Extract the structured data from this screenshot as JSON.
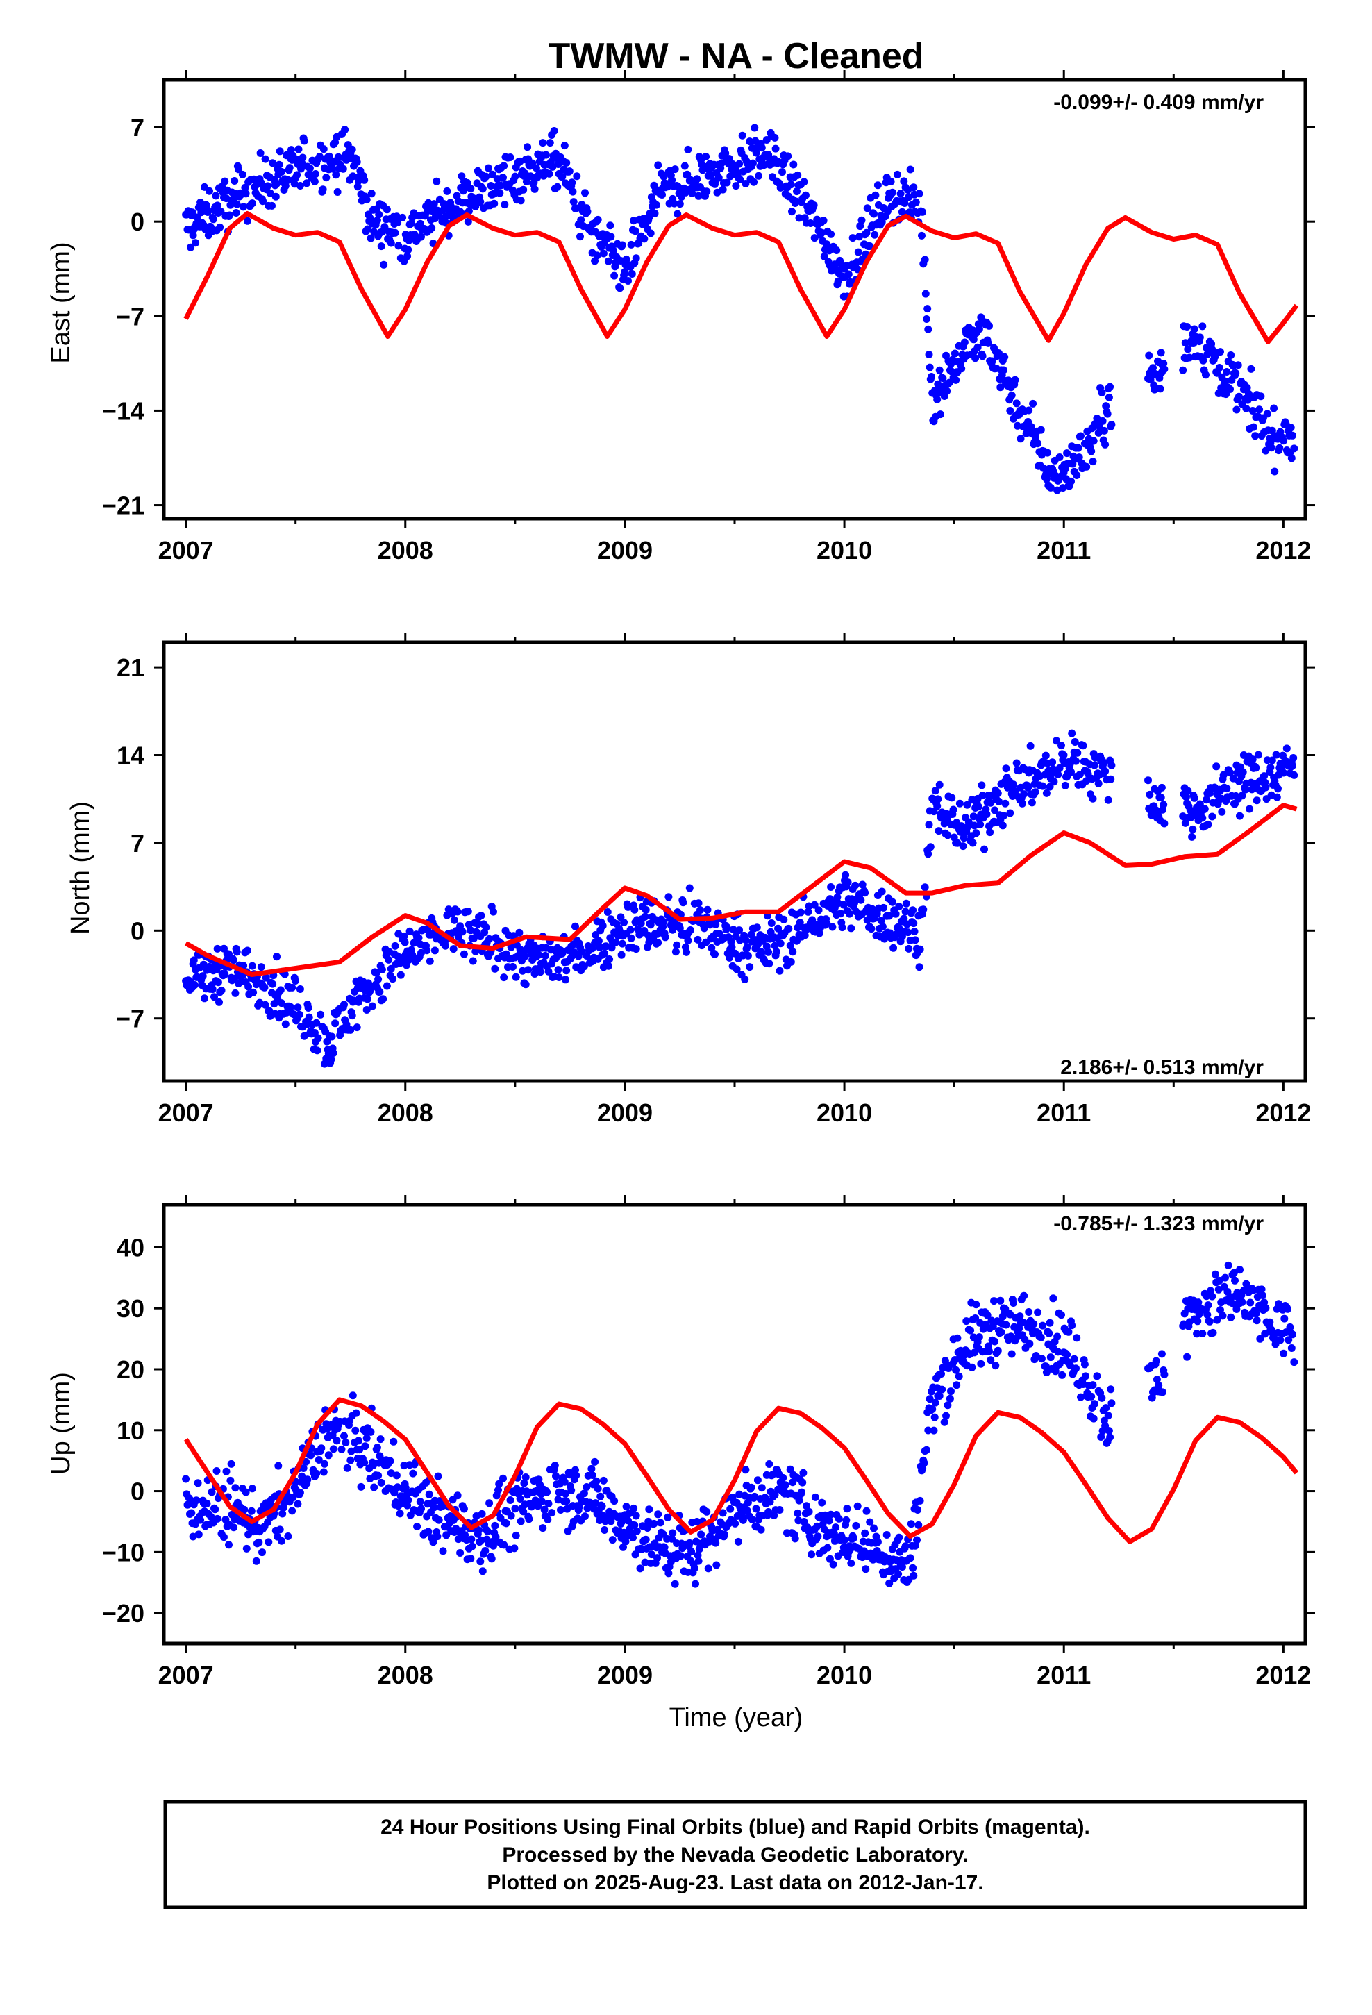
{
  "title": "TWMW  - NA - Cleaned",
  "colors": {
    "points": "#0000ff",
    "model": "#ff0000",
    "rapid_points": "#ff00ff"
  },
  "footer": {
    "line1": "24 Hour Positions Using Final Orbits (blue) and Rapid Orbits (magenta).",
    "line2": "Processed by the Nevada Geodetic Laboratory.",
    "line3": "Plotted on 2025-Aug-23. Last data on 2012-Jan-17."
  },
  "chart_data": [
    {
      "type": "scatter",
      "component": "east",
      "ylabel": "East (mm)",
      "xlabel": "",
      "rate": "-0.099+/- 0.409 mm/yr",
      "rate_position": "top-right",
      "xlim": [
        2006.9,
        2012.1
      ],
      "ylim": [
        -22,
        10.5
      ],
      "xticks": [
        "2007",
        "2008",
        "2009",
        "2010",
        "2011",
        "2012"
      ],
      "yticks": [
        "7",
        "0",
        "-7",
        "-14",
        "-21"
      ],
      "ytick_values": [
        7,
        0,
        -7,
        -14,
        -21
      ],
      "observations_summary": [
        {
          "x": 2007.0,
          "y": -0.5
        },
        {
          "x": 2007.3,
          "y": 2.5
        },
        {
          "x": 2007.55,
          "y": 4.0
        },
        {
          "x": 2007.75,
          "y": 5.0
        },
        {
          "x": 2007.85,
          "y": 0.0
        },
        {
          "x": 2008.0,
          "y": -1.0
        },
        {
          "x": 2008.25,
          "y": 1.5
        },
        {
          "x": 2008.5,
          "y": 3.5
        },
        {
          "x": 2008.7,
          "y": 4.5
        },
        {
          "x": 2008.85,
          "y": -1.0
        },
        {
          "x": 2009.0,
          "y": -4.0
        },
        {
          "x": 2009.15,
          "y": 2.0
        },
        {
          "x": 2009.45,
          "y": 4.0
        },
        {
          "x": 2009.65,
          "y": 5.0
        },
        {
          "x": 2009.85,
          "y": 0.5
        },
        {
          "x": 2010.0,
          "y": -4.0
        },
        {
          "x": 2010.2,
          "y": 2.0
        },
        {
          "x": 2010.35,
          "y": 1.0
        },
        {
          "x": 2010.4,
          "y": -13.0
        },
        {
          "x": 2010.55,
          "y": -9.5
        },
        {
          "x": 2010.65,
          "y": -8.5
        },
        {
          "x": 2010.8,
          "y": -14.0
        },
        {
          "x": 2010.95,
          "y": -19.0
        },
        {
          "x": 2011.1,
          "y": -17.0
        },
        {
          "x": 2011.25,
          "y": -12.0
        },
        {
          "x": 2011.4,
          "y": -11.5
        },
        {
          "x": 2011.6,
          "y": -8.5
        },
        {
          "x": 2011.8,
          "y": -12.5
        },
        {
          "x": 2011.95,
          "y": -16.0
        },
        {
          "x": 2012.05,
          "y": -16.0
        }
      ],
      "observation_gaps": [
        [
          2011.22,
          2011.38
        ],
        [
          2011.46,
          2011.54
        ]
      ],
      "observation_scatter_mm": 1.4,
      "model_curve": [
        {
          "x": 2007.0,
          "y": -7.2
        },
        {
          "x": 2007.1,
          "y": -4.0
        },
        {
          "x": 2007.2,
          "y": -0.5
        },
        {
          "x": 2007.28,
          "y": 0.6
        },
        {
          "x": 2007.4,
          "y": -0.5
        },
        {
          "x": 2007.5,
          "y": -1.0
        },
        {
          "x": 2007.6,
          "y": -0.8
        },
        {
          "x": 2007.7,
          "y": -1.5
        },
        {
          "x": 2007.8,
          "y": -5.0
        },
        {
          "x": 2007.92,
          "y": -8.5
        },
        {
          "x": 2008.0,
          "y": -6.5
        },
        {
          "x": 2008.1,
          "y": -3.0
        },
        {
          "x": 2008.2,
          "y": -0.3
        },
        {
          "x": 2008.28,
          "y": 0.5
        },
        {
          "x": 2008.4,
          "y": -0.5
        },
        {
          "x": 2008.5,
          "y": -1.0
        },
        {
          "x": 2008.6,
          "y": -0.8
        },
        {
          "x": 2008.7,
          "y": -1.5
        },
        {
          "x": 2008.8,
          "y": -5.0
        },
        {
          "x": 2008.92,
          "y": -8.5
        },
        {
          "x": 2009.0,
          "y": -6.5
        },
        {
          "x": 2009.1,
          "y": -3.0
        },
        {
          "x": 2009.2,
          "y": -0.3
        },
        {
          "x": 2009.28,
          "y": 0.5
        },
        {
          "x": 2009.4,
          "y": -0.5
        },
        {
          "x": 2009.5,
          "y": -1.0
        },
        {
          "x": 2009.6,
          "y": -0.8
        },
        {
          "x": 2009.7,
          "y": -1.5
        },
        {
          "x": 2009.8,
          "y": -5.0
        },
        {
          "x": 2009.92,
          "y": -8.5
        },
        {
          "x": 2010.0,
          "y": -6.5
        },
        {
          "x": 2010.1,
          "y": -3.0
        },
        {
          "x": 2010.2,
          "y": -0.3
        },
        {
          "x": 2010.28,
          "y": 0.4
        },
        {
          "x": 2010.4,
          "y": -0.7
        },
        {
          "x": 2010.5,
          "y": -1.2
        },
        {
          "x": 2010.6,
          "y": -0.9
        },
        {
          "x": 2010.7,
          "y": -1.6
        },
        {
          "x": 2010.8,
          "y": -5.2
        },
        {
          "x": 2010.93,
          "y": -8.8
        },
        {
          "x": 2011.0,
          "y": -6.8
        },
        {
          "x": 2011.1,
          "y": -3.2
        },
        {
          "x": 2011.2,
          "y": -0.5
        },
        {
          "x": 2011.28,
          "y": 0.3
        },
        {
          "x": 2011.4,
          "y": -0.8
        },
        {
          "x": 2011.5,
          "y": -1.3
        },
        {
          "x": 2011.6,
          "y": -1.0
        },
        {
          "x": 2011.7,
          "y": -1.7
        },
        {
          "x": 2011.8,
          "y": -5.3
        },
        {
          "x": 2011.93,
          "y": -8.9
        },
        {
          "x": 2012.0,
          "y": -7.5
        },
        {
          "x": 2012.06,
          "y": -6.2
        }
      ]
    },
    {
      "type": "scatter",
      "component": "north",
      "ylabel": "North (mm)",
      "xlabel": "",
      "rate": "2.186+/- 0.513 mm/yr",
      "rate_position": "bottom-right",
      "xlim": [
        2006.9,
        2012.1
      ],
      "ylim": [
        -12,
        23
      ],
      "xticks": [
        "2007",
        "2008",
        "2009",
        "2010",
        "2011",
        "2012"
      ],
      "yticks": [
        "21",
        "14",
        "7",
        "0",
        "-7"
      ],
      "ytick_values": [
        21,
        14,
        7,
        0,
        -7
      ],
      "observations_summary": [
        {
          "x": 2007.0,
          "y": -4.0
        },
        {
          "x": 2007.2,
          "y": -3.0
        },
        {
          "x": 2007.4,
          "y": -4.5
        },
        {
          "x": 2007.55,
          "y": -7.0
        },
        {
          "x": 2007.65,
          "y": -9.0
        },
        {
          "x": 2007.8,
          "y": -5.0
        },
        {
          "x": 2008.0,
          "y": -2.0
        },
        {
          "x": 2008.2,
          "y": 0.0
        },
        {
          "x": 2008.4,
          "y": -1.0
        },
        {
          "x": 2008.6,
          "y": -2.5
        },
        {
          "x": 2008.8,
          "y": -2.0
        },
        {
          "x": 2009.0,
          "y": 0.5
        },
        {
          "x": 2009.2,
          "y": 0.5
        },
        {
          "x": 2009.4,
          "y": 0.0
        },
        {
          "x": 2009.6,
          "y": -1.5
        },
        {
          "x": 2009.8,
          "y": 0.0
        },
        {
          "x": 2010.0,
          "y": 2.5
        },
        {
          "x": 2010.2,
          "y": 1.0
        },
        {
          "x": 2010.35,
          "y": 0.0
        },
        {
          "x": 2010.4,
          "y": 10.0
        },
        {
          "x": 2010.55,
          "y": 8.0
        },
        {
          "x": 2010.7,
          "y": 10.5
        },
        {
          "x": 2010.9,
          "y": 12.5
        },
        {
          "x": 2011.05,
          "y": 13.5
        },
        {
          "x": 2011.2,
          "y": 12.5
        },
        {
          "x": 2011.4,
          "y": 10.5
        },
        {
          "x": 2011.6,
          "y": 9.5
        },
        {
          "x": 2011.75,
          "y": 11.5
        },
        {
          "x": 2011.95,
          "y": 12.5
        },
        {
          "x": 2012.05,
          "y": 13.5
        }
      ],
      "observation_gaps": [
        [
          2011.22,
          2011.38
        ],
        [
          2011.46,
          2011.54
        ]
      ],
      "observation_scatter_mm": 1.6,
      "model_curve": [
        {
          "x": 2007.0,
          "y": -1.0
        },
        {
          "x": 2007.1,
          "y": -2.0
        },
        {
          "x": 2007.3,
          "y": -3.5
        },
        {
          "x": 2007.5,
          "y": -3.0
        },
        {
          "x": 2007.7,
          "y": -2.5
        },
        {
          "x": 2007.85,
          "y": -0.5
        },
        {
          "x": 2008.0,
          "y": 1.2
        },
        {
          "x": 2008.1,
          "y": 0.6
        },
        {
          "x": 2008.25,
          "y": -1.2
        },
        {
          "x": 2008.4,
          "y": -1.4
        },
        {
          "x": 2008.55,
          "y": -0.5
        },
        {
          "x": 2008.75,
          "y": -0.7
        },
        {
          "x": 2008.9,
          "y": 1.8
        },
        {
          "x": 2009.0,
          "y": 3.4
        },
        {
          "x": 2009.1,
          "y": 2.8
        },
        {
          "x": 2009.25,
          "y": 0.9
        },
        {
          "x": 2009.4,
          "y": 1.0
        },
        {
          "x": 2009.55,
          "y": 1.5
        },
        {
          "x": 2009.7,
          "y": 1.5
        },
        {
          "x": 2009.85,
          "y": 3.5
        },
        {
          "x": 2010.0,
          "y": 5.5
        },
        {
          "x": 2010.12,
          "y": 5.0
        },
        {
          "x": 2010.28,
          "y": 3.0
        },
        {
          "x": 2010.4,
          "y": 3.0
        },
        {
          "x": 2010.55,
          "y": 3.6
        },
        {
          "x": 2010.7,
          "y": 3.8
        },
        {
          "x": 2010.85,
          "y": 6.0
        },
        {
          "x": 2011.0,
          "y": 7.8
        },
        {
          "x": 2011.12,
          "y": 7.0
        },
        {
          "x": 2011.28,
          "y": 5.2
        },
        {
          "x": 2011.4,
          "y": 5.3
        },
        {
          "x": 2011.55,
          "y": 5.9
        },
        {
          "x": 2011.7,
          "y": 6.1
        },
        {
          "x": 2011.85,
          "y": 8.0
        },
        {
          "x": 2012.0,
          "y": 10.0
        },
        {
          "x": 2012.06,
          "y": 9.7
        }
      ]
    },
    {
      "type": "scatter",
      "component": "up",
      "ylabel": "Up (mm)",
      "xlabel": "Time (year)",
      "rate": "-0.785+/- 1.323 mm/yr",
      "rate_position": "top-right",
      "xlim": [
        2006.9,
        2012.1
      ],
      "ylim": [
        -25,
        47
      ],
      "xticks": [
        "2007",
        "2008",
        "2009",
        "2010",
        "2011",
        "2012"
      ],
      "yticks": [
        "40",
        "30",
        "20",
        "10",
        "0",
        "-10",
        "-20"
      ],
      "ytick_values": [
        40,
        30,
        20,
        10,
        0,
        -10,
        -20
      ],
      "observations_summary": [
        {
          "x": 2007.0,
          "y": -2.0
        },
        {
          "x": 2007.2,
          "y": -3.0
        },
        {
          "x": 2007.35,
          "y": -6.0
        },
        {
          "x": 2007.5,
          "y": 0.0
        },
        {
          "x": 2007.65,
          "y": 10.0
        },
        {
          "x": 2007.8,
          "y": 7.0
        },
        {
          "x": 2008.0,
          "y": 0.0
        },
        {
          "x": 2008.2,
          "y": -5.0
        },
        {
          "x": 2008.35,
          "y": -7.0
        },
        {
          "x": 2008.5,
          "y": -3.0
        },
        {
          "x": 2008.7,
          "y": 1.0
        },
        {
          "x": 2008.9,
          "y": -2.0
        },
        {
          "x": 2009.1,
          "y": -8.0
        },
        {
          "x": 2009.3,
          "y": -10.0
        },
        {
          "x": 2009.5,
          "y": -3.0
        },
        {
          "x": 2009.7,
          "y": 0.0
        },
        {
          "x": 2009.9,
          "y": -6.0
        },
        {
          "x": 2010.1,
          "y": -9.0
        },
        {
          "x": 2010.3,
          "y": -12.0
        },
        {
          "x": 2010.4,
          "y": 15.0
        },
        {
          "x": 2010.55,
          "y": 24.0
        },
        {
          "x": 2010.7,
          "y": 27.0
        },
        {
          "x": 2010.85,
          "y": 27.0
        },
        {
          "x": 2011.0,
          "y": 24.0
        },
        {
          "x": 2011.2,
          "y": 12.0
        },
        {
          "x": 2011.4,
          "y": 17.0
        },
        {
          "x": 2011.6,
          "y": 30.0
        },
        {
          "x": 2011.8,
          "y": 32.0
        },
        {
          "x": 2011.95,
          "y": 27.0
        },
        {
          "x": 2012.05,
          "y": 25.0
        }
      ],
      "observation_gaps": [
        [
          2011.22,
          2011.38
        ],
        [
          2011.46,
          2011.54
        ]
      ],
      "observation_scatter_mm": 4.0,
      "model_curve": [
        {
          "x": 2007.0,
          "y": 8.5
        },
        {
          "x": 2007.1,
          "y": 3.0
        },
        {
          "x": 2007.2,
          "y": -2.5
        },
        {
          "x": 2007.3,
          "y": -5.0
        },
        {
          "x": 2007.4,
          "y": -3.0
        },
        {
          "x": 2007.5,
          "y": 3.0
        },
        {
          "x": 2007.6,
          "y": 11.0
        },
        {
          "x": 2007.7,
          "y": 15.0
        },
        {
          "x": 2007.8,
          "y": 14.0
        },
        {
          "x": 2007.9,
          "y": 11.5
        },
        {
          "x": 2008.0,
          "y": 8.5
        },
        {
          "x": 2008.1,
          "y": 3.0
        },
        {
          "x": 2008.2,
          "y": -2.5
        },
        {
          "x": 2008.3,
          "y": -6.0
        },
        {
          "x": 2008.4,
          "y": -4.0
        },
        {
          "x": 2008.5,
          "y": 2.5
        },
        {
          "x": 2008.6,
          "y": 10.5
        },
        {
          "x": 2008.7,
          "y": 14.3
        },
        {
          "x": 2008.8,
          "y": 13.5
        },
        {
          "x": 2008.9,
          "y": 11.0
        },
        {
          "x": 2009.0,
          "y": 7.8
        },
        {
          "x": 2009.1,
          "y": 2.5
        },
        {
          "x": 2009.2,
          "y": -3.0
        },
        {
          "x": 2009.3,
          "y": -6.7
        },
        {
          "x": 2009.4,
          "y": -4.7
        },
        {
          "x": 2009.5,
          "y": 1.8
        },
        {
          "x": 2009.6,
          "y": 9.8
        },
        {
          "x": 2009.7,
          "y": 13.6
        },
        {
          "x": 2009.8,
          "y": 12.8
        },
        {
          "x": 2009.9,
          "y": 10.3
        },
        {
          "x": 2010.0,
          "y": 7.1
        },
        {
          "x": 2010.1,
          "y": 1.8
        },
        {
          "x": 2010.2,
          "y": -3.7
        },
        {
          "x": 2010.3,
          "y": -7.4
        },
        {
          "x": 2010.4,
          "y": -5.4
        },
        {
          "x": 2010.5,
          "y": 1.1
        },
        {
          "x": 2010.6,
          "y": 9.1
        },
        {
          "x": 2010.7,
          "y": 12.9
        },
        {
          "x": 2010.8,
          "y": 12.1
        },
        {
          "x": 2010.9,
          "y": 9.6
        },
        {
          "x": 2011.0,
          "y": 6.4
        },
        {
          "x": 2011.1,
          "y": 1.1
        },
        {
          "x": 2011.2,
          "y": -4.4
        },
        {
          "x": 2011.3,
          "y": -8.3
        },
        {
          "x": 2011.4,
          "y": -6.2
        },
        {
          "x": 2011.5,
          "y": 0.3
        },
        {
          "x": 2011.6,
          "y": 8.3
        },
        {
          "x": 2011.7,
          "y": 12.1
        },
        {
          "x": 2011.8,
          "y": 11.3
        },
        {
          "x": 2011.9,
          "y": 8.8
        },
        {
          "x": 2012.0,
          "y": 5.6
        },
        {
          "x": 2012.06,
          "y": 3.0
        }
      ]
    }
  ]
}
